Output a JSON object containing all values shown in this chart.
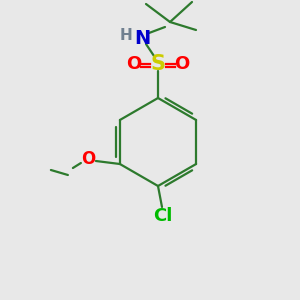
{
  "background_color": "#e8e8e8",
  "bond_color": "#2d7a2d",
  "atom_colors": {
    "S": "#cccc00",
    "O": "#ff0000",
    "N": "#0000cc",
    "H": "#708090",
    "Cl": "#00bb00",
    "C": "#2d7a2d"
  },
  "figsize": [
    3.0,
    3.0
  ],
  "dpi": 100
}
